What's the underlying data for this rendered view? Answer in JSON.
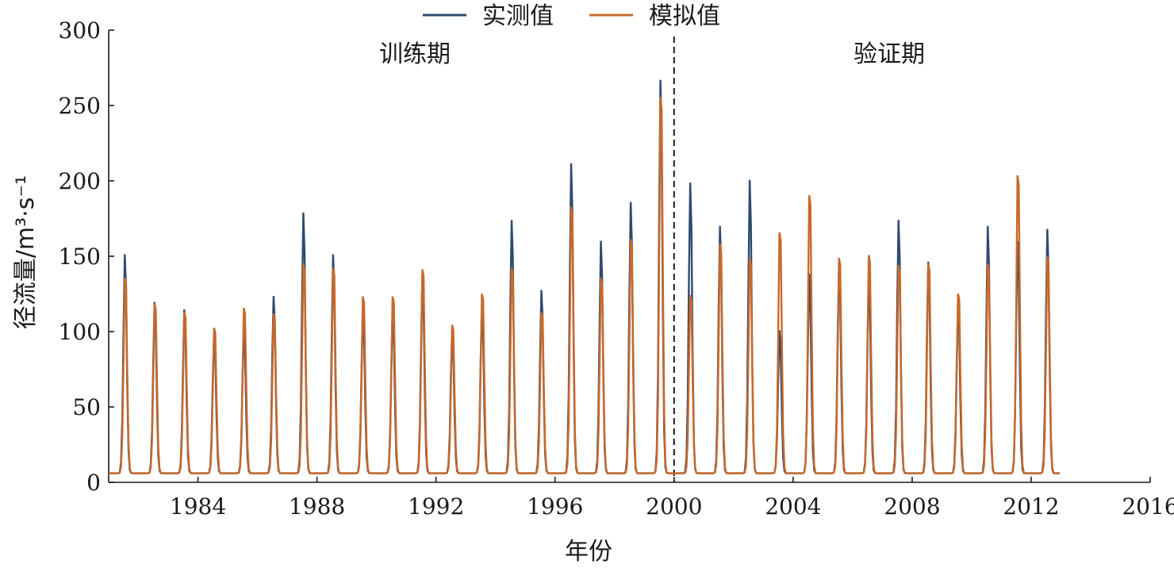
{
  "chart_data": {
    "type": "line",
    "xlabel": "年份",
    "ylabel": "径流量/m³·s⁻¹",
    "xlim": [
      1981,
      2016
    ],
    "ylim": [
      0,
      300
    ],
    "xticks": [
      1984,
      1988,
      1992,
      1996,
      2000,
      2004,
      2008,
      2012,
      2016
    ],
    "yticks": [
      0,
      50,
      100,
      150,
      200,
      250,
      300
    ],
    "grid": false,
    "legend_position": "top-center",
    "divider_year": 2000,
    "period_labels": {
      "train": "训练期",
      "validate": "验证期"
    },
    "series_peaks": [
      {
        "name": "实测值",
        "color": "#2f4a72",
        "values": [
          153,
          121,
          116,
          101,
          103,
          125,
          181,
          153,
          115,
          115,
          139,
          103,
          117,
          176,
          129,
          214,
          162,
          188,
          270,
          201,
          172,
          203,
          102,
          140,
          146,
          137,
          176,
          148,
          120,
          172,
          162,
          170
        ]
      },
      {
        "name": "模拟值",
        "color": "#c8692a",
        "values": [
          143,
          125,
          119,
          108,
          122,
          118,
          153,
          150,
          130,
          130,
          149,
          110,
          132,
          150,
          119,
          193,
          143,
          170,
          270,
          131,
          167,
          157,
          175,
          201,
          157,
          159,
          152,
          153,
          132,
          153,
          215,
          158
        ]
      }
    ],
    "peak_years": [
      1981,
      1982,
      1983,
      1984,
      1985,
      1986,
      1987,
      1988,
      1989,
      1990,
      1991,
      1992,
      1993,
      1994,
      1995,
      1996,
      1997,
      1998,
      1999,
      2000,
      2001,
      2002,
      2003,
      2004,
      2005,
      2006,
      2007,
      2008,
      2009,
      2010,
      2011,
      2012
    ],
    "baseline_min": 6
  }
}
